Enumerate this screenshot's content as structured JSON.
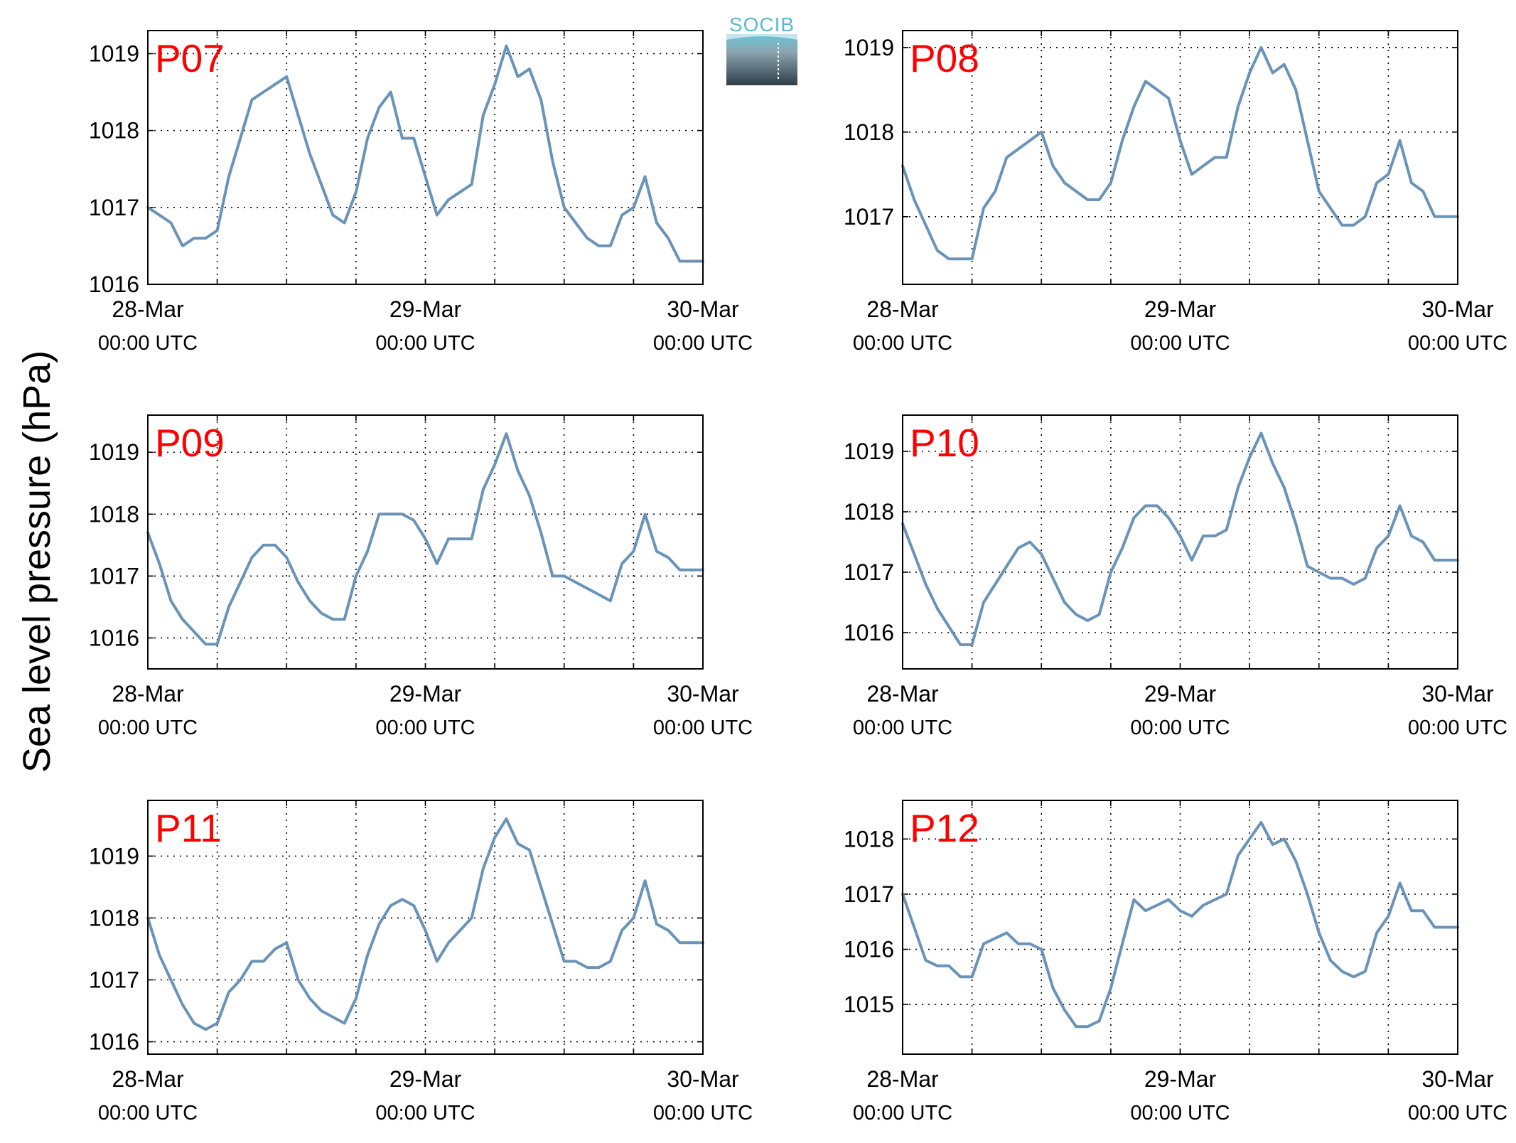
{
  "figure": {
    "ylabel": "Sea level pressure (hPa)",
    "logo_text": "SOCIB",
    "line_color": "#6a93b8",
    "title_color": "#ff0000"
  },
  "chart_data": [
    {
      "type": "line",
      "title": "P07",
      "x_tick_labels": [
        [
          "28-Mar",
          "00:00 UTC"
        ],
        [
          "29-Mar",
          "00:00 UTC"
        ],
        [
          "30-Mar",
          "00:00 UTC"
        ]
      ],
      "xlim": [
        0,
        48
      ],
      "ylim": [
        1016,
        1019.3
      ],
      "yticks": [
        1016,
        1017,
        1018,
        1019
      ],
      "x": [
        0,
        1,
        2,
        3,
        4,
        5,
        6,
        7,
        8,
        9,
        10,
        11,
        12,
        13,
        14,
        15,
        16,
        17,
        18,
        19,
        20,
        21,
        22,
        23,
        24,
        25,
        26,
        27,
        28,
        29,
        30,
        31,
        32,
        33,
        34,
        35,
        36,
        37,
        38,
        39,
        40,
        41,
        42,
        43,
        44,
        45,
        46,
        47,
        48
      ],
      "y": [
        1017.0,
        1016.9,
        1016.8,
        1016.5,
        1016.6,
        1016.6,
        1016.7,
        1017.4,
        1017.9,
        1018.4,
        1018.5,
        1018.6,
        1018.7,
        1018.2,
        1017.7,
        1017.3,
        1016.9,
        1016.8,
        1017.2,
        1017.9,
        1018.3,
        1018.5,
        1017.9,
        1017.9,
        1017.4,
        1016.9,
        1017.1,
        1017.2,
        1017.3,
        1018.2,
        1018.6,
        1019.1,
        1018.7,
        1018.8,
        1018.4,
        1017.6,
        1017.0,
        1016.8,
        1016.6,
        1016.5,
        1016.5,
        1016.9,
        1017.0,
        1017.4,
        1016.8,
        1016.6,
        1016.3,
        1016.3,
        1016.3
      ]
    },
    {
      "type": "line",
      "title": "P08",
      "x_tick_labels": [
        [
          "28-Mar",
          "00:00 UTC"
        ],
        [
          "29-Mar",
          "00:00 UTC"
        ],
        [
          "30-Mar",
          "00:00 UTC"
        ]
      ],
      "xlim": [
        0,
        48
      ],
      "ylim": [
        1016.2,
        1019.2
      ],
      "yticks": [
        1017,
        1018,
        1019
      ],
      "x": [
        0,
        1,
        2,
        3,
        4,
        5,
        6,
        7,
        8,
        9,
        10,
        11,
        12,
        13,
        14,
        15,
        16,
        17,
        18,
        19,
        20,
        21,
        22,
        23,
        24,
        25,
        26,
        27,
        28,
        29,
        30,
        31,
        32,
        33,
        34,
        35,
        36,
        37,
        38,
        39,
        40,
        41,
        42,
        43,
        44,
        45,
        46,
        47,
        48
      ],
      "y": [
        1017.6,
        1017.2,
        1016.9,
        1016.6,
        1016.5,
        1016.5,
        1016.5,
        1017.1,
        1017.3,
        1017.7,
        1017.8,
        1017.9,
        1018.0,
        1017.6,
        1017.4,
        1017.3,
        1017.2,
        1017.2,
        1017.4,
        1017.9,
        1018.3,
        1018.6,
        1018.5,
        1018.4,
        1017.9,
        1017.5,
        1017.6,
        1017.7,
        1017.7,
        1018.3,
        1018.7,
        1019.0,
        1018.7,
        1018.8,
        1018.5,
        1017.9,
        1017.3,
        1017.1,
        1016.9,
        1016.9,
        1017.0,
        1017.4,
        1017.5,
        1017.9,
        1017.4,
        1017.3,
        1017.0,
        1017.0,
        1017.0
      ]
    },
    {
      "type": "line",
      "title": "P09",
      "x_tick_labels": [
        [
          "28-Mar",
          "00:00 UTC"
        ],
        [
          "29-Mar",
          "00:00 UTC"
        ],
        [
          "30-Mar",
          "00:00 UTC"
        ]
      ],
      "xlim": [
        0,
        48
      ],
      "ylim": [
        1015.5,
        1019.6
      ],
      "yticks": [
        1016,
        1017,
        1018,
        1019
      ],
      "x": [
        0,
        1,
        2,
        3,
        4,
        5,
        6,
        7,
        8,
        9,
        10,
        11,
        12,
        13,
        14,
        15,
        16,
        17,
        18,
        19,
        20,
        21,
        22,
        23,
        24,
        25,
        26,
        27,
        28,
        29,
        30,
        31,
        32,
        33,
        34,
        35,
        36,
        37,
        38,
        39,
        40,
        41,
        42,
        43,
        44,
        45,
        46,
        47,
        48
      ],
      "y": [
        1017.7,
        1017.2,
        1016.6,
        1016.3,
        1016.1,
        1015.9,
        1015.9,
        1016.5,
        1016.9,
        1017.3,
        1017.5,
        1017.5,
        1017.3,
        1016.9,
        1016.6,
        1016.4,
        1016.3,
        1016.3,
        1017.0,
        1017.4,
        1018.0,
        1018.0,
        1018.0,
        1017.9,
        1017.6,
        1017.2,
        1017.6,
        1017.6,
        1017.6,
        1018.4,
        1018.8,
        1019.3,
        1018.7,
        1018.3,
        1017.7,
        1017.0,
        1017.0,
        1016.9,
        1016.8,
        1016.7,
        1016.6,
        1017.2,
        1017.4,
        1018.0,
        1017.4,
        1017.3,
        1017.1,
        1017.1,
        1017.1
      ]
    },
    {
      "type": "line",
      "title": "P10",
      "x_tick_labels": [
        [
          "28-Mar",
          "00:00 UTC"
        ],
        [
          "29-Mar",
          "00:00 UTC"
        ],
        [
          "30-Mar",
          "00:00 UTC"
        ]
      ],
      "xlim": [
        0,
        48
      ],
      "ylim": [
        1015.4,
        1019.6
      ],
      "yticks": [
        1016,
        1017,
        1018,
        1019
      ],
      "x": [
        0,
        1,
        2,
        3,
        4,
        5,
        6,
        7,
        8,
        9,
        10,
        11,
        12,
        13,
        14,
        15,
        16,
        17,
        18,
        19,
        20,
        21,
        22,
        23,
        24,
        25,
        26,
        27,
        28,
        29,
        30,
        31,
        32,
        33,
        34,
        35,
        36,
        37,
        38,
        39,
        40,
        41,
        42,
        43,
        44,
        45,
        46,
        47,
        48
      ],
      "y": [
        1017.8,
        1017.3,
        1016.8,
        1016.4,
        1016.1,
        1015.8,
        1015.8,
        1016.5,
        1016.8,
        1017.1,
        1017.4,
        1017.5,
        1017.3,
        1016.9,
        1016.5,
        1016.3,
        1016.2,
        1016.3,
        1017.0,
        1017.4,
        1017.9,
        1018.1,
        1018.1,
        1017.9,
        1017.6,
        1017.2,
        1017.6,
        1017.6,
        1017.7,
        1018.4,
        1018.9,
        1019.3,
        1018.8,
        1018.4,
        1017.8,
        1017.1,
        1017.0,
        1016.9,
        1016.9,
        1016.8,
        1016.9,
        1017.4,
        1017.6,
        1018.1,
        1017.6,
        1017.5,
        1017.2,
        1017.2,
        1017.2
      ]
    },
    {
      "type": "line",
      "title": "P11",
      "x_tick_labels": [
        [
          "28-Mar",
          "00:00 UTC"
        ],
        [
          "29-Mar",
          "00:00 UTC"
        ],
        [
          "30-Mar",
          "00:00 UTC"
        ]
      ],
      "xlim": [
        0,
        48
      ],
      "ylim": [
        1015.8,
        1019.9
      ],
      "yticks": [
        1016,
        1017,
        1018,
        1019
      ],
      "x": [
        0,
        1,
        2,
        3,
        4,
        5,
        6,
        7,
        8,
        9,
        10,
        11,
        12,
        13,
        14,
        15,
        16,
        17,
        18,
        19,
        20,
        21,
        22,
        23,
        24,
        25,
        26,
        27,
        28,
        29,
        30,
        31,
        32,
        33,
        34,
        35,
        36,
        37,
        38,
        39,
        40,
        41,
        42,
        43,
        44,
        45,
        46,
        47,
        48
      ],
      "y": [
        1018.0,
        1017.4,
        1017.0,
        1016.6,
        1016.3,
        1016.2,
        1016.3,
        1016.8,
        1017.0,
        1017.3,
        1017.3,
        1017.5,
        1017.6,
        1017.0,
        1016.7,
        1016.5,
        1016.4,
        1016.3,
        1016.7,
        1017.4,
        1017.9,
        1018.2,
        1018.3,
        1018.2,
        1017.8,
        1017.3,
        1017.6,
        1017.8,
        1018.0,
        1018.8,
        1019.3,
        1019.6,
        1019.2,
        1019.1,
        1018.5,
        1017.9,
        1017.3,
        1017.3,
        1017.2,
        1017.2,
        1017.3,
        1017.8,
        1018.0,
        1018.6,
        1017.9,
        1017.8,
        1017.6,
        1017.6,
        1017.6
      ]
    },
    {
      "type": "line",
      "title": "P12",
      "x_tick_labels": [
        [
          "28-Mar",
          "00:00 UTC"
        ],
        [
          "29-Mar",
          "00:00 UTC"
        ],
        [
          "30-Mar",
          "00:00 UTC"
        ]
      ],
      "xlim": [
        0,
        48
      ],
      "ylim": [
        1014.1,
        1018.7
      ],
      "yticks": [
        1015,
        1016,
        1017,
        1018
      ],
      "x": [
        0,
        1,
        2,
        3,
        4,
        5,
        6,
        7,
        8,
        9,
        10,
        11,
        12,
        13,
        14,
        15,
        16,
        17,
        18,
        19,
        20,
        21,
        22,
        23,
        24,
        25,
        26,
        27,
        28,
        29,
        30,
        31,
        32,
        33,
        34,
        35,
        36,
        37,
        38,
        39,
        40,
        41,
        42,
        43,
        44,
        45,
        46,
        47,
        48
      ],
      "y": [
        1017.0,
        1016.4,
        1015.8,
        1015.7,
        1015.7,
        1015.5,
        1015.5,
        1016.1,
        1016.2,
        1016.3,
        1016.1,
        1016.1,
        1016.0,
        1015.3,
        1014.9,
        1014.6,
        1014.6,
        1014.7,
        1015.3,
        1016.1,
        1016.9,
        1016.7,
        1016.8,
        1016.9,
        1016.7,
        1016.6,
        1016.8,
        1016.9,
        1017.0,
        1017.7,
        1018.0,
        1018.3,
        1017.9,
        1018.0,
        1017.6,
        1017.0,
        1016.3,
        1015.8,
        1015.6,
        1015.5,
        1015.6,
        1016.3,
        1016.6,
        1017.2,
        1016.7,
        1016.7,
        1016.4,
        1016.4,
        1016.4
      ]
    }
  ]
}
